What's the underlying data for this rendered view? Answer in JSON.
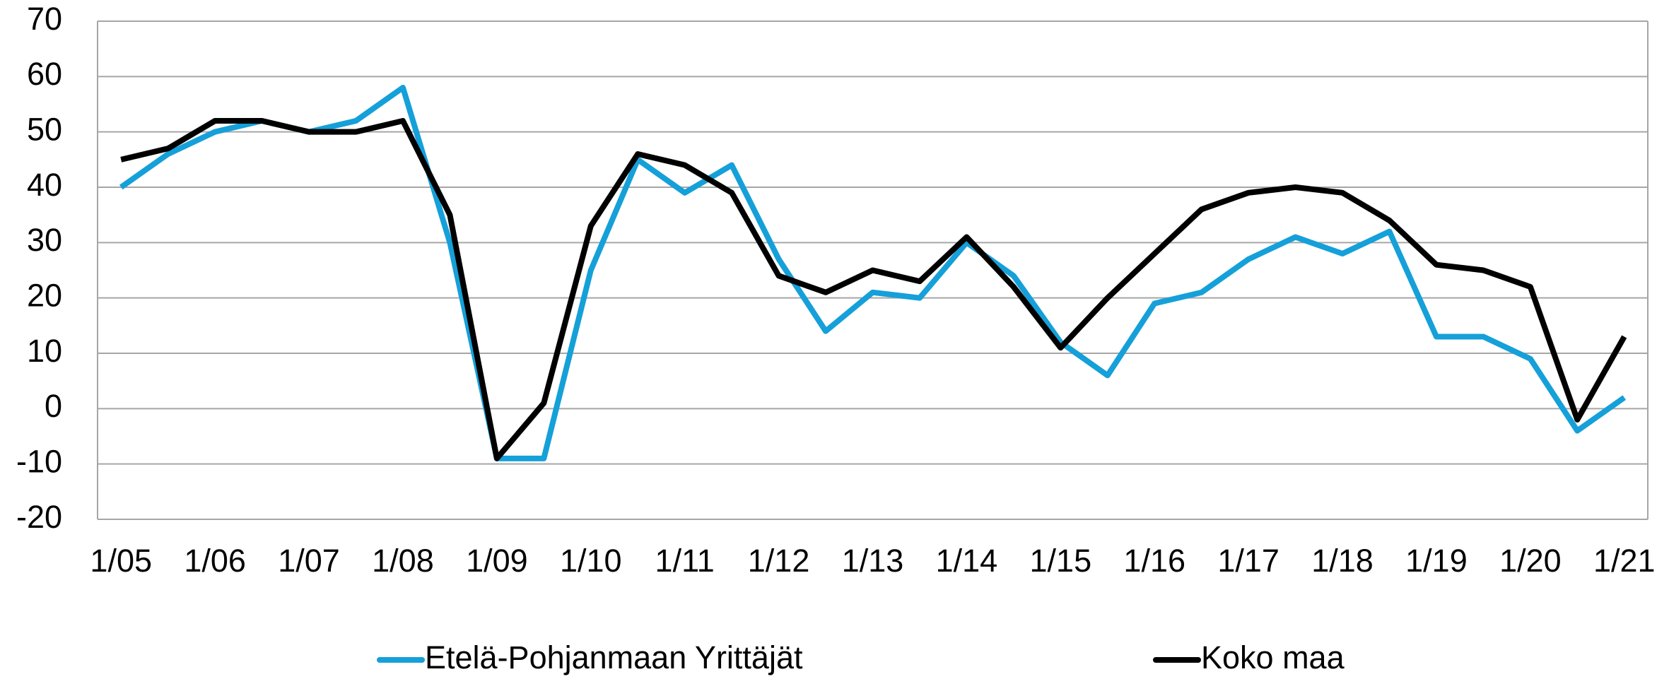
{
  "chart_data": {
    "type": "line",
    "categories": [
      "1/05",
      null,
      "1/06",
      null,
      "1/07",
      null,
      "1/08",
      null,
      "1/09",
      null,
      "1/10",
      null,
      "1/11",
      null,
      "1/12",
      null,
      "1/13",
      null,
      "1/14",
      null,
      "1/15",
      null,
      "1/16",
      null,
      "1/17",
      null,
      "1/18",
      null,
      "1/19",
      null,
      "1/20",
      null,
      "1/21"
    ],
    "series": [
      {
        "name": "Etelä-Pohjanmaan Yrittäjät",
        "color": "#15a0d9",
        "values": [
          40,
          46,
          50,
          52,
          50,
          52,
          58,
          30,
          -9,
          -9,
          25,
          45,
          39,
          44,
          27,
          14,
          21,
          20,
          30,
          24,
          12,
          6,
          19,
          21,
          27,
          31,
          28,
          32,
          13,
          13,
          9,
          -4,
          2
        ]
      },
      {
        "name": "Koko maa",
        "color": "#000000",
        "values": [
          45,
          47,
          52,
          52,
          50,
          50,
          52,
          35,
          -9,
          1,
          33,
          46,
          44,
          39,
          24,
          21,
          25,
          23,
          31,
          22,
          11,
          20,
          28,
          36,
          39,
          40,
          39,
          34,
          26,
          25,
          22,
          -2,
          13
        ]
      }
    ],
    "ylim": [
      -20,
      70
    ],
    "yticks": [
      -20,
      -10,
      0,
      10,
      20,
      30,
      40,
      50,
      60,
      70
    ],
    "grid": true,
    "legend": "bottom"
  }
}
